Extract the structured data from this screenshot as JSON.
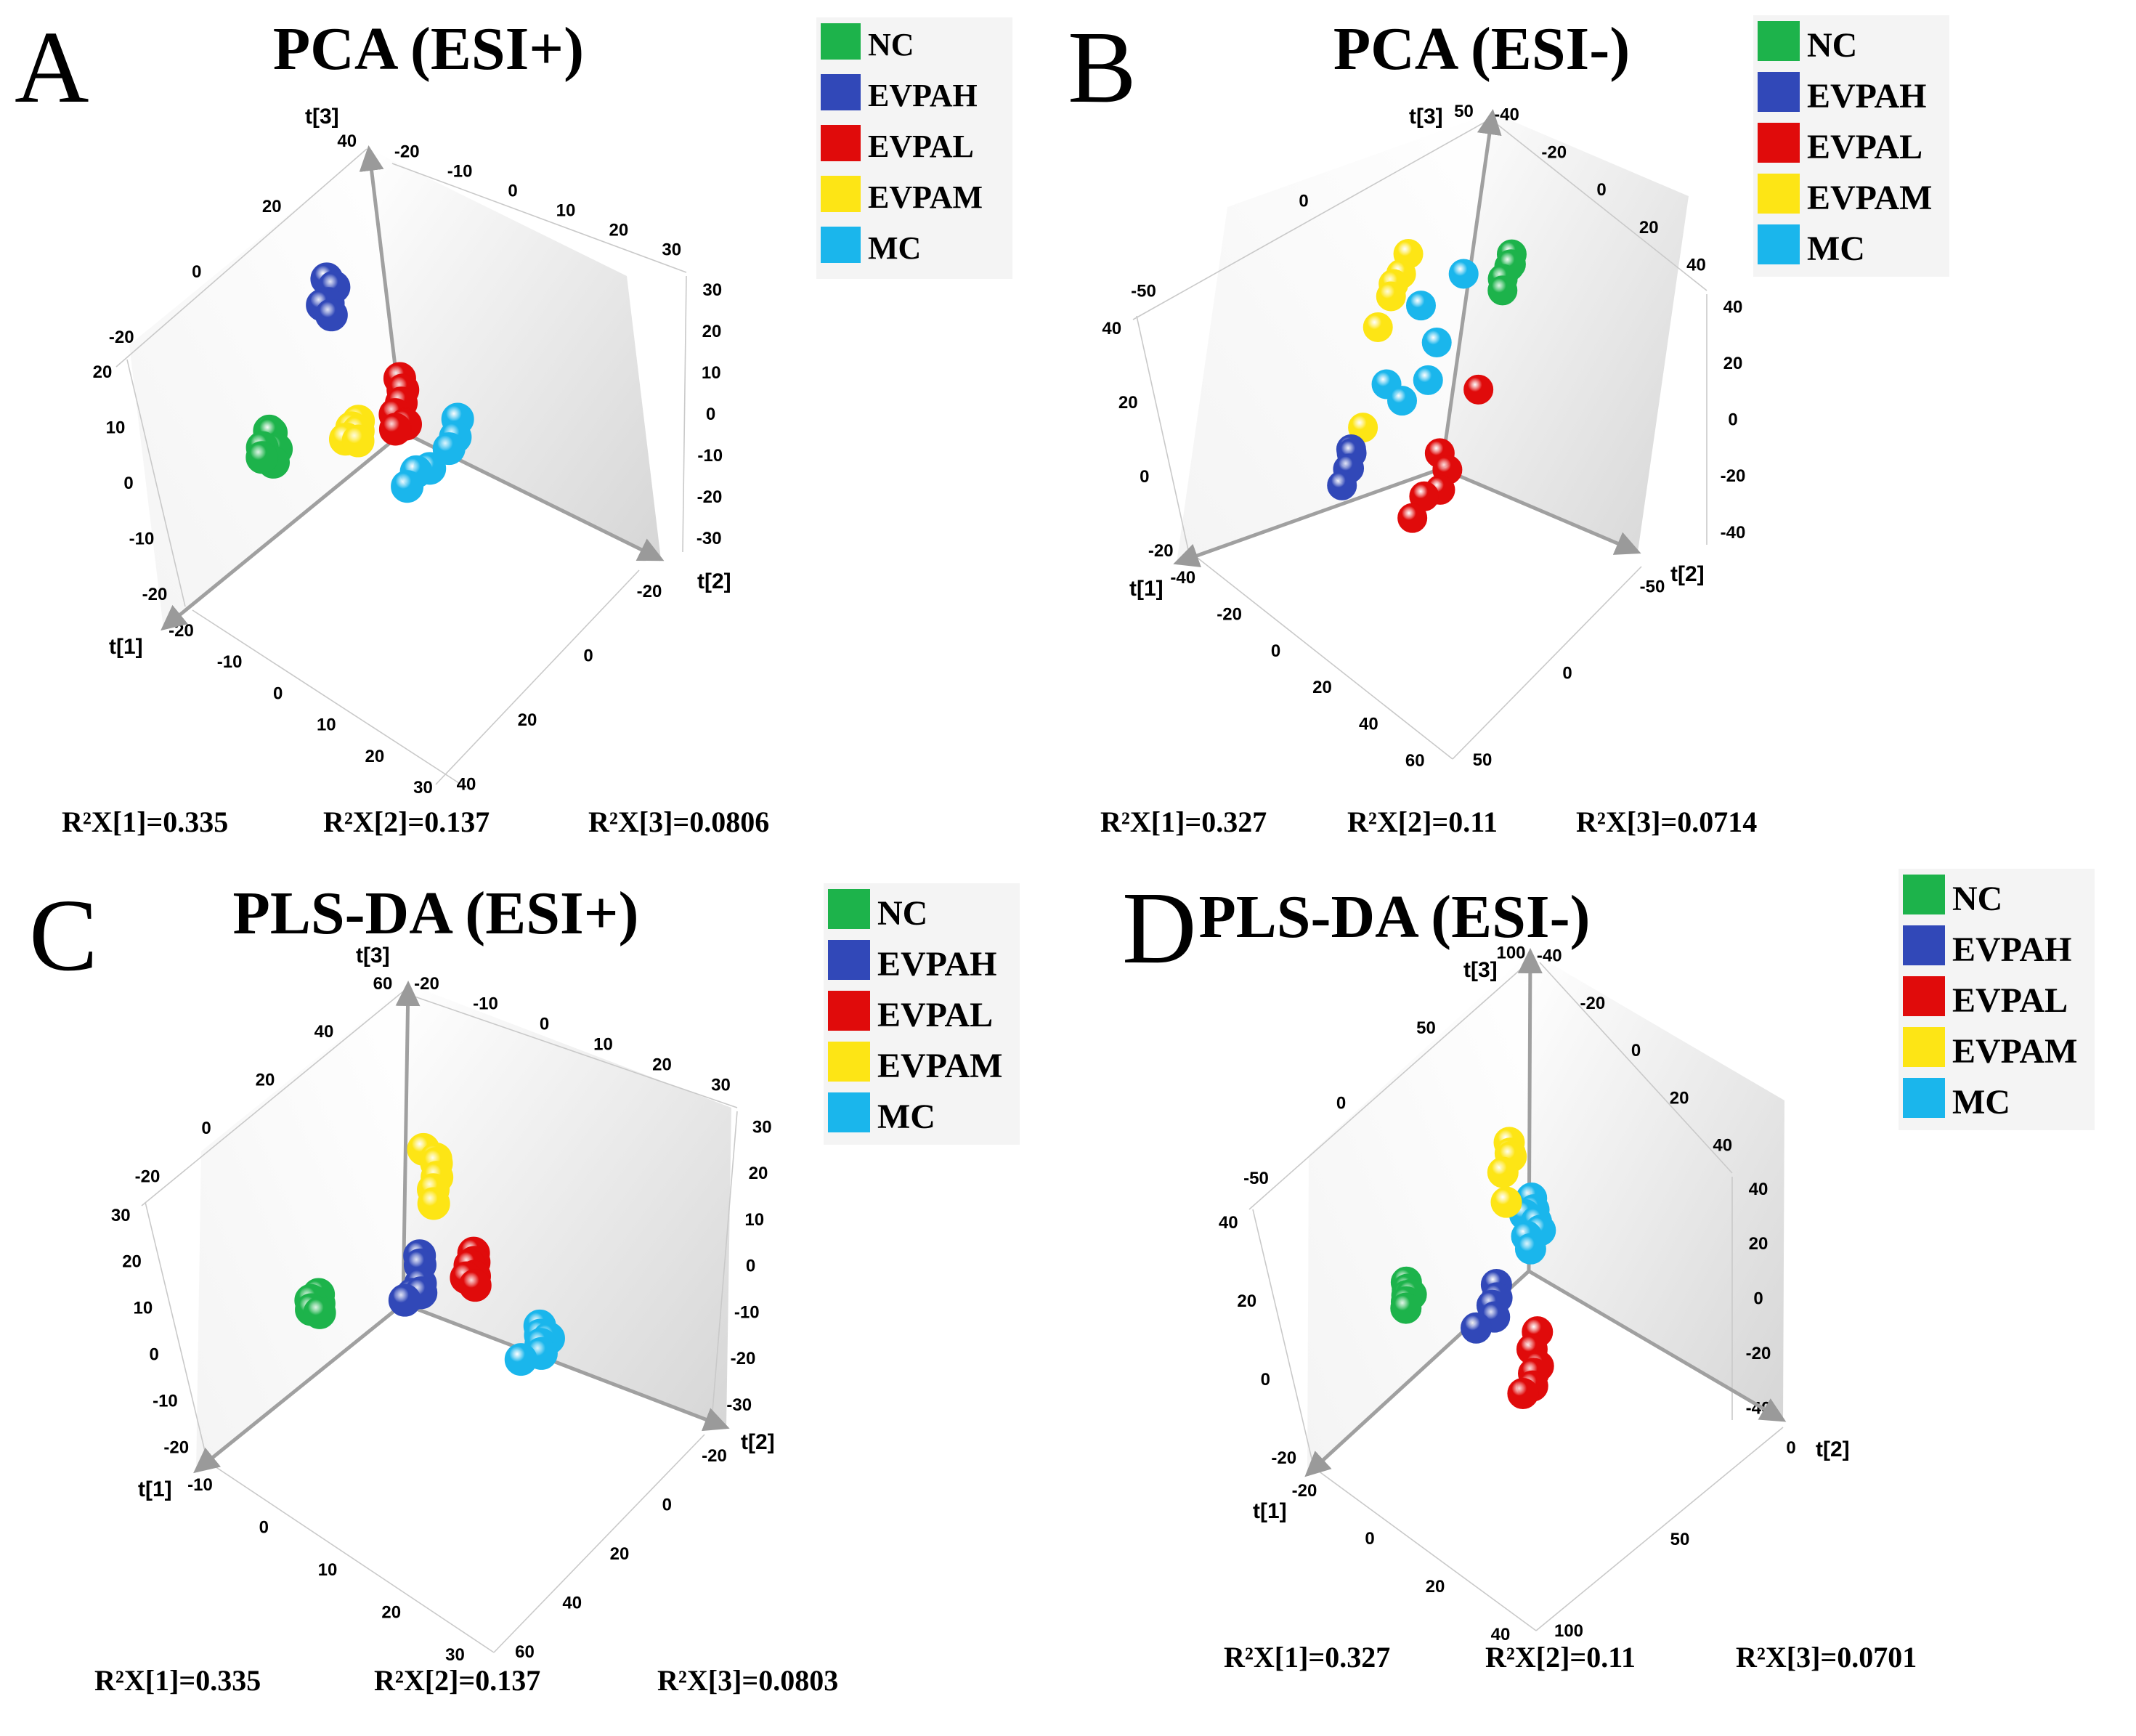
{
  "figure": {
    "panel_letters": [
      "A",
      "B",
      "C",
      "D"
    ]
  },
  "colors": {
    "NC": "#1db34b",
    "EVPAH": "#3148b8",
    "EVPAL": "#e00b0b",
    "EVPAM": "#fde515",
    "MC": "#1ab6ec"
  },
  "chart_data": [
    {
      "type": "scatter",
      "panel": "A",
      "title": "PCA (ESI+)",
      "axes": [
        "t[1]",
        "t[2]",
        "t[3]"
      ],
      "legend": [
        "NC",
        "EVPAH",
        "EVPAL",
        "EVPAM",
        "MC"
      ],
      "variance": [
        "R²X[1]=0.335",
        "R²X[2]=0.137",
        "R²X[3]=0.0806"
      ],
      "ticks": {
        "t1": [
          "-20",
          "-10",
          "0",
          "10",
          "20",
          "30"
        ],
        "t2": [
          "-20",
          "0",
          "20",
          "40"
        ],
        "t3": [
          "-20",
          "-10",
          "0",
          "10",
          "20"
        ],
        "top_back": [
          "-20",
          "0",
          "20",
          "40"
        ],
        "top_right": [
          "-20",
          "-10",
          "0",
          "10",
          "20",
          "30"
        ],
        "right_wall": [
          "30",
          "20",
          "10",
          "0",
          "-10",
          "-20",
          "-30"
        ]
      },
      "ranges": {
        "t1": [
          -30,
          30
        ],
        "t2": [
          -30,
          50
        ],
        "t3": [
          -30,
          30
        ]
      },
      "points": [
        {
          "g": "NC",
          "t1": 4,
          "t2": -24,
          "t3": -5
        },
        {
          "g": "NC",
          "t1": 5,
          "t2": -22,
          "t3": -4
        },
        {
          "g": "NC",
          "t1": 6,
          "t2": -24,
          "t3": -7
        },
        {
          "g": "NC",
          "t1": 5,
          "t2": -21,
          "t3": -7
        },
        {
          "g": "NC",
          "t1": 7,
          "t2": -23,
          "t3": -8
        },
        {
          "g": "NC",
          "t1": 6,
          "t2": -21,
          "t3": -9
        },
        {
          "g": "EVPAH",
          "t1": -3,
          "t2": -10,
          "t3": 26
        },
        {
          "g": "EVPAH",
          "t1": -3,
          "t2": -8,
          "t3": 25
        },
        {
          "g": "EVPAH",
          "t1": -2,
          "t2": -9,
          "t3": 22
        },
        {
          "g": "EVPAH",
          "t1": -2,
          "t2": -11,
          "t3": 21
        },
        {
          "g": "EVPAH",
          "t1": -1,
          "t2": -7,
          "t3": 21
        },
        {
          "g": "EVPAL",
          "t1": -4,
          "t2": 8,
          "t3": 11
        },
        {
          "g": "EVPAL",
          "t1": -3,
          "t2": 10,
          "t3": 10
        },
        {
          "g": "EVPAL",
          "t1": -3,
          "t2": 9,
          "t3": 7
        },
        {
          "g": "EVPAL",
          "t1": -2,
          "t2": 8,
          "t3": 5
        },
        {
          "g": "EVPAL",
          "t1": -2,
          "t2": 11,
          "t3": 4
        },
        {
          "g": "EVPAL",
          "t1": -1,
          "t2": 9,
          "t3": 3
        },
        {
          "g": "EVPAM",
          "t1": 1,
          "t2": -2,
          "t3": 1
        },
        {
          "g": "EVPAM",
          "t1": 0,
          "t2": -1,
          "t3": 2
        },
        {
          "g": "EVPAM",
          "t1": 1,
          "t2": 0,
          "t3": 1
        },
        {
          "g": "EVPAM",
          "t1": 2,
          "t2": -3,
          "t3": -1
        },
        {
          "g": "EVPAM",
          "t1": 2,
          "t2": 1,
          "t3": 0
        },
        {
          "g": "EVPAM",
          "t1": 1,
          "t2": -4,
          "t3": -2
        },
        {
          "g": "MC",
          "t1": -6,
          "t2": 22,
          "t3": 6
        },
        {
          "g": "MC",
          "t1": -5,
          "t2": 22,
          "t3": 3
        },
        {
          "g": "MC",
          "t1": -4,
          "t2": 21,
          "t3": 1
        },
        {
          "g": "MC",
          "t1": -2,
          "t2": 17,
          "t3": -3
        },
        {
          "g": "MC",
          "t1": -1,
          "t2": 14,
          "t3": -4
        },
        {
          "g": "MC",
          "t1": 0,
          "t2": 12,
          "t3": -7
        }
      ]
    },
    {
      "type": "scatter",
      "panel": "B",
      "title": "PCA (ESI-)",
      "axes": [
        "t[1]",
        "t[2]",
        "t[3]"
      ],
      "legend": [
        "NC",
        "EVPAH",
        "EVPAL",
        "EVPAM",
        "MC"
      ],
      "variance": [
        "R²X[1]=0.327",
        "R²X[2]=0.11",
        "R²X[3]=0.0714"
      ],
      "ticks": {
        "t1": [
          "-40",
          "-20",
          "0",
          "20",
          "40",
          "60"
        ],
        "t2": [
          "-50",
          "0",
          "50"
        ],
        "t3": [
          "-20",
          "0",
          "20",
          "40"
        ],
        "top_back": [
          "-50",
          "0",
          "50"
        ],
        "top_right": [
          "-40",
          "-20",
          "0",
          "20",
          "40"
        ],
        "right_wall": [
          "40",
          "20",
          "0",
          "-20",
          "-40"
        ]
      },
      "ranges": {
        "t1": [
          -60,
          60
        ],
        "t2": [
          -60,
          60
        ],
        "t3": [
          -40,
          40
        ]
      },
      "points": [
        {
          "g": "NC",
          "t1": -20,
          "t2": 8,
          "t3": 28
        },
        {
          "g": "NC",
          "t1": -18,
          "t2": 10,
          "t3": 26
        },
        {
          "g": "NC",
          "t1": -17,
          "t2": 12,
          "t3": 27
        },
        {
          "g": "NC",
          "t1": -15,
          "t2": 11,
          "t3": 24
        },
        {
          "g": "NC",
          "t1": -14,
          "t2": 13,
          "t3": 22
        },
        {
          "g": "EVPAH",
          "t1": 18,
          "t2": -20,
          "t3": -12
        },
        {
          "g": "EVPAH",
          "t1": 20,
          "t2": -17,
          "t3": -12
        },
        {
          "g": "EVPAH",
          "t1": 19,
          "t2": -19,
          "t3": -16
        },
        {
          "g": "EVPAH",
          "t1": 21,
          "t2": -16,
          "t3": -15
        },
        {
          "g": "EVPAH",
          "t1": 24,
          "t2": -15,
          "t3": -18
        },
        {
          "g": "EVPAL",
          "t1": -2,
          "t2": 22,
          "t3": 4
        },
        {
          "g": "EVPAL",
          "t1": 10,
          "t2": 20,
          "t3": -8
        },
        {
          "g": "EVPAL",
          "t1": 12,
          "t2": 28,
          "t3": -10
        },
        {
          "g": "EVPAL",
          "t1": 16,
          "t2": 22,
          "t3": -16
        },
        {
          "g": "EVPAL",
          "t1": 14,
          "t2": 28,
          "t3": -14
        },
        {
          "g": "EVPAL",
          "t1": 20,
          "t2": 22,
          "t3": -20
        },
        {
          "g": "EVPAM",
          "t1": -12,
          "t2": -40,
          "t3": 22
        },
        {
          "g": "EVPAM",
          "t1": -10,
          "t2": -40,
          "t3": 18
        },
        {
          "g": "EVPAM",
          "t1": -8,
          "t2": -41,
          "t3": 16
        },
        {
          "g": "EVPAM",
          "t1": -6,
          "t2": -39,
          "t3": 14
        },
        {
          "g": "EVPAM",
          "t1": -2,
          "t2": -39,
          "t3": 8
        },
        {
          "g": "EVPAM",
          "t1": 14,
          "t2": -20,
          "t3": -8
        },
        {
          "g": "MC",
          "t1": -14,
          "t2": -10,
          "t3": 22
        },
        {
          "g": "MC",
          "t1": -8,
          "t2": -24,
          "t3": 14
        },
        {
          "g": "MC",
          "t1": -2,
          "t2": -5,
          "t3": 10
        },
        {
          "g": "MC",
          "t1": 6,
          "t2": -20,
          "t3": 0
        },
        {
          "g": "MC",
          "t1": 6,
          "t2": -10,
          "t3": -2
        },
        {
          "g": "MC",
          "t1": 2,
          "t2": -2,
          "t3": 3
        }
      ]
    },
    {
      "type": "scatter",
      "panel": "C",
      "title": "PLS-DA (ESI+)",
      "axes": [
        "t[1]",
        "t[2]",
        "t[3]"
      ],
      "legend": [
        "NC",
        "EVPAH",
        "EVPAL",
        "EVPAM",
        "MC"
      ],
      "variance": [
        "R²X[1]=0.335",
        "R²X[2]=0.137",
        "R²X[3]=0.0803"
      ],
      "ticks": {
        "t1": [
          "-10",
          "0",
          "10",
          "20",
          "30"
        ],
        "t2": [
          "-20",
          "0",
          "20",
          "40",
          "60"
        ],
        "t3": [
          "-20",
          "-10",
          "0",
          "10",
          "20",
          "30"
        ],
        "top_back": [
          "-20",
          "0",
          "20",
          "40",
          "60"
        ],
        "top_right": [
          "-20",
          "-10",
          "0",
          "10",
          "20",
          "30"
        ],
        "right_wall": [
          "30",
          "20",
          "10",
          "0",
          "-10",
          "-20",
          "-30"
        ]
      },
      "ranges": {
        "t1": [
          -30,
          30
        ],
        "t2": [
          -30,
          50
        ],
        "t3": [
          -30,
          40
        ]
      },
      "points": [
        {
          "g": "NC",
          "t1": 5,
          "t2": -18,
          "t3": -2
        },
        {
          "g": "NC",
          "t1": 6,
          "t2": -17,
          "t3": -3
        },
        {
          "g": "NC",
          "t1": 6,
          "t2": -19,
          "t3": -3
        },
        {
          "g": "NC",
          "t1": 7,
          "t2": -18,
          "t3": -4
        },
        {
          "g": "NC",
          "t1": 7,
          "t2": -16,
          "t3": -4
        },
        {
          "g": "EVPAH",
          "t1": -2,
          "t2": 0,
          "t3": 8
        },
        {
          "g": "EVPAH",
          "t1": -1,
          "t2": 1,
          "t3": 7
        },
        {
          "g": "EVPAH",
          "t1": 0,
          "t2": 2,
          "t3": 4
        },
        {
          "g": "EVPAH",
          "t1": 1,
          "t2": 1,
          "t3": 2
        },
        {
          "g": "EVPAH",
          "t1": 2,
          "t2": 0,
          "t3": 1
        },
        {
          "g": "EVPAH",
          "t1": 1,
          "t2": 3,
          "t3": 3
        },
        {
          "g": "EVPAL",
          "t1": -3,
          "t2": 12,
          "t3": 12
        },
        {
          "g": "EVPAL",
          "t1": -2,
          "t2": 13,
          "t3": 11
        },
        {
          "g": "EVPAL",
          "t1": -2,
          "t2": 12,
          "t3": 10
        },
        {
          "g": "EVPAL",
          "t1": -1,
          "t2": 14,
          "t3": 9
        },
        {
          "g": "EVPAL",
          "t1": -1,
          "t2": 12,
          "t3": 8
        },
        {
          "g": "EVPAL",
          "t1": 0,
          "t2": 15,
          "t3": 8
        },
        {
          "g": "EVPAM",
          "t1": -5,
          "t2": -2,
          "t3": 28
        },
        {
          "g": "EVPAM",
          "t1": -5,
          "t2": 1,
          "t3": 27
        },
        {
          "g": "EVPAM",
          "t1": -4,
          "t2": 2,
          "t3": 27
        },
        {
          "g": "EVPAM",
          "t1": -3,
          "t2": 3,
          "t3": 25
        },
        {
          "g": "EVPAM",
          "t1": -2,
          "t2": 3,
          "t3": 23
        },
        {
          "g": "EVPAM",
          "t1": -1,
          "t2": 4,
          "t3": 21
        },
        {
          "g": "MC",
          "t1": -3,
          "t2": 28,
          "t3": 2
        },
        {
          "g": "MC",
          "t1": -2,
          "t2": 29,
          "t3": 1
        },
        {
          "g": "MC",
          "t1": -1,
          "t2": 30,
          "t3": 0
        },
        {
          "g": "MC",
          "t1": -2,
          "t2": 31,
          "t3": 1
        },
        {
          "g": "MC",
          "t1": 0,
          "t2": 31,
          "t3": -1
        },
        {
          "g": "MC",
          "t1": 1,
          "t2": 27,
          "t3": -3
        }
      ]
    },
    {
      "type": "scatter",
      "panel": "D",
      "title": "PLS-DA (ESI-)",
      "axes": [
        "t[1]",
        "t[2]",
        "t[3]"
      ],
      "legend": [
        "NC",
        "EVPAH",
        "EVPAL",
        "EVPAM",
        "MC"
      ],
      "variance": [
        "R²X[1]=0.327",
        "R²X[2]=0.11",
        "R²X[3]=0.0701"
      ],
      "ticks": {
        "t1": [
          "-20",
          "0",
          "20",
          "40"
        ],
        "t2": [
          "0",
          "50",
          "100"
        ],
        "t3": [
          "-20",
          "0",
          "20",
          "40"
        ],
        "top_back": [
          "-50",
          "0",
          "50",
          "100"
        ],
        "top_right": [
          "-40",
          "-20",
          "0",
          "20",
          "40"
        ],
        "right_wall": [
          "40",
          "20",
          "0",
          "-20",
          "-40"
        ]
      },
      "ranges": {
        "t1": [
          -60,
          60
        ],
        "t2": [
          -60,
          120
        ],
        "t3": [
          -40,
          50
        ]
      },
      "points": [
        {
          "g": "NC",
          "t1": 18,
          "t2": -40,
          "t3": -2
        },
        {
          "g": "NC",
          "t1": 19,
          "t2": -38,
          "t3": -3
        },
        {
          "g": "NC",
          "t1": 20,
          "t2": -37,
          "t3": -4
        },
        {
          "g": "NC",
          "t1": 21,
          "t2": -36,
          "t3": -5
        },
        {
          "g": "NC",
          "t1": 20,
          "t2": -34,
          "t3": -3
        },
        {
          "g": "NC",
          "t1": 22,
          "t2": -35,
          "t3": -6
        },
        {
          "g": "EVPAH",
          "t1": 3,
          "t2": 2,
          "t3": 0
        },
        {
          "g": "EVPAH",
          "t1": 5,
          "t2": 5,
          "t3": -2
        },
        {
          "g": "EVPAH",
          "t1": 6,
          "t2": 3,
          "t3": -4
        },
        {
          "g": "EVPAH",
          "t1": 7,
          "t2": 6,
          "t3": -6
        },
        {
          "g": "EVPAH",
          "t1": 12,
          "t2": 0,
          "t3": -8
        },
        {
          "g": "EVPAL",
          "t1": 6,
          "t2": 34,
          "t3": -4
        },
        {
          "g": "EVPAL",
          "t1": 8,
          "t2": 33,
          "t3": -8
        },
        {
          "g": "EVPAL",
          "t1": 10,
          "t2": 40,
          "t3": -10
        },
        {
          "g": "EVPAL",
          "t1": 11,
          "t2": 38,
          "t3": -12
        },
        {
          "g": "EVPAL",
          "t1": 13,
          "t2": 40,
          "t3": -14
        },
        {
          "g": "EVPAL",
          "t1": 15,
          "t2": 36,
          "t3": -16
        },
        {
          "g": "EVPAM",
          "t1": -8,
          "t2": -4,
          "t3": 32
        },
        {
          "g": "EVPAM",
          "t1": -7,
          "t2": -2,
          "t3": 30
        },
        {
          "g": "EVPAM",
          "t1": -6,
          "t2": 0,
          "t3": 30
        },
        {
          "g": "EVPAM",
          "t1": -4,
          "t2": -3,
          "t3": 26
        },
        {
          "g": "EVPAM",
          "t1": -2,
          "t2": 2,
          "t3": 20
        },
        {
          "g": "MC",
          "t1": -6,
          "t2": 14,
          "t3": 22
        },
        {
          "g": "MC",
          "t1": -5,
          "t2": 17,
          "t3": 20
        },
        {
          "g": "MC",
          "t1": -4,
          "t2": 12,
          "t3": 18
        },
        {
          "g": "MC",
          "t1": -4,
          "t2": 20,
          "t3": 18
        },
        {
          "g": "MC",
          "t1": -3,
          "t2": 24,
          "t3": 17
        },
        {
          "g": "MC",
          "t1": -2,
          "t2": 16,
          "t3": 14
        },
        {
          "g": "MC",
          "t1": -1,
          "t2": 20,
          "t3": 12
        }
      ]
    }
  ]
}
